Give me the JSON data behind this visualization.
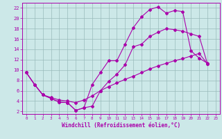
{
  "xlabel": "Windchill (Refroidissement éolien,°C)",
  "bg_color": "#cce8e8",
  "line_color": "#aa00aa",
  "grid_color": "#99bbbb",
  "xlim": [
    -0.5,
    23.5
  ],
  "ylim": [
    1.5,
    23
  ],
  "xticks": [
    0,
    1,
    2,
    3,
    4,
    5,
    6,
    7,
    8,
    9,
    10,
    11,
    12,
    13,
    14,
    15,
    16,
    17,
    18,
    19,
    20,
    21,
    22,
    23
  ],
  "yticks": [
    2,
    4,
    6,
    8,
    10,
    12,
    14,
    16,
    18,
    20,
    22
  ],
  "l1_x": [
    0,
    1,
    2,
    3,
    4,
    5,
    6,
    7,
    8,
    9,
    10,
    11,
    12,
    13,
    14,
    15,
    16,
    17,
    18,
    19,
    20,
    21,
    22
  ],
  "l1_y": [
    9.5,
    7.2,
    5.2,
    4.5,
    3.8,
    3.7,
    2.2,
    2.7,
    7.2,
    9.5,
    11.8,
    11.8,
    15.0,
    18.2,
    20.3,
    21.7,
    22.2,
    21.0,
    21.5,
    21.3,
    13.7,
    12.3,
    11.3
  ],
  "l2_x": [
    0,
    1,
    2,
    3,
    4,
    5,
    6,
    7,
    8,
    9,
    10,
    11,
    12,
    13,
    14,
    15,
    16,
    17,
    18,
    19,
    20,
    21,
    22
  ],
  "l2_y": [
    9.5,
    7.2,
    5.2,
    4.5,
    3.8,
    3.7,
    2.2,
    2.7,
    3.0,
    6.0,
    7.8,
    9.2,
    11.0,
    14.5,
    15.0,
    16.5,
    17.3,
    18.0,
    17.8,
    17.5,
    17.0,
    16.5,
    11.2
  ],
  "l3_x": [
    0,
    1,
    2,
    3,
    4,
    5,
    6,
    7,
    8,
    9,
    10,
    11,
    12,
    13,
    14,
    15,
    16,
    17,
    18,
    19,
    20,
    21,
    22
  ],
  "l3_y": [
    9.5,
    7.2,
    5.2,
    4.7,
    4.2,
    4.0,
    3.7,
    4.2,
    5.0,
    6.0,
    6.8,
    7.5,
    8.2,
    8.8,
    9.5,
    10.2,
    10.8,
    11.3,
    11.8,
    12.2,
    12.7,
    13.2,
    11.2
  ]
}
